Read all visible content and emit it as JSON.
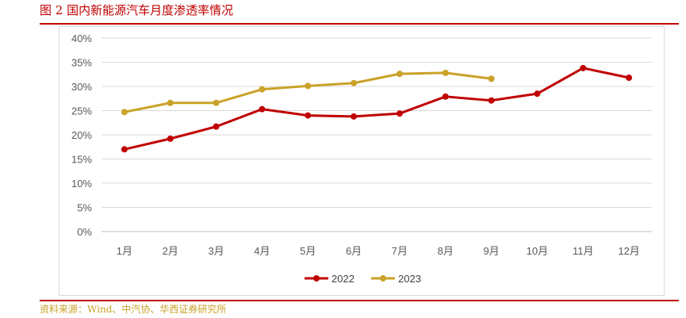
{
  "figure": {
    "title": "图 2 国内新能源汽车月度渗透率情况",
    "source": "资料来源：Wind、中汽协、华西证券研究所"
  },
  "chart_data": {
    "type": "line",
    "categories": [
      "1月",
      "2月",
      "3月",
      "4月",
      "5月",
      "6月",
      "7月",
      "8月",
      "9月",
      "10月",
      "11月",
      "12月"
    ],
    "series": [
      {
        "name": "2022",
        "color": "#c00000",
        "values": [
          17.0,
          19.2,
          21.7,
          25.3,
          24.0,
          23.8,
          24.4,
          27.9,
          27.1,
          28.5,
          33.8,
          31.8
        ]
      },
      {
        "name": "2023",
        "color": "#c9a227",
        "values": [
          24.7,
          26.6,
          26.6,
          29.4,
          30.1,
          30.7,
          32.6,
          32.8,
          31.6,
          null,
          null,
          null
        ]
      }
    ],
    "ylim": [
      0,
      40
    ],
    "yticks": [
      "0%",
      "5%",
      "10%",
      "15%",
      "20%",
      "25%",
      "30%",
      "35%",
      "40%"
    ],
    "y_unit": "%",
    "grid": true,
    "legend_position": "bottom-center"
  }
}
